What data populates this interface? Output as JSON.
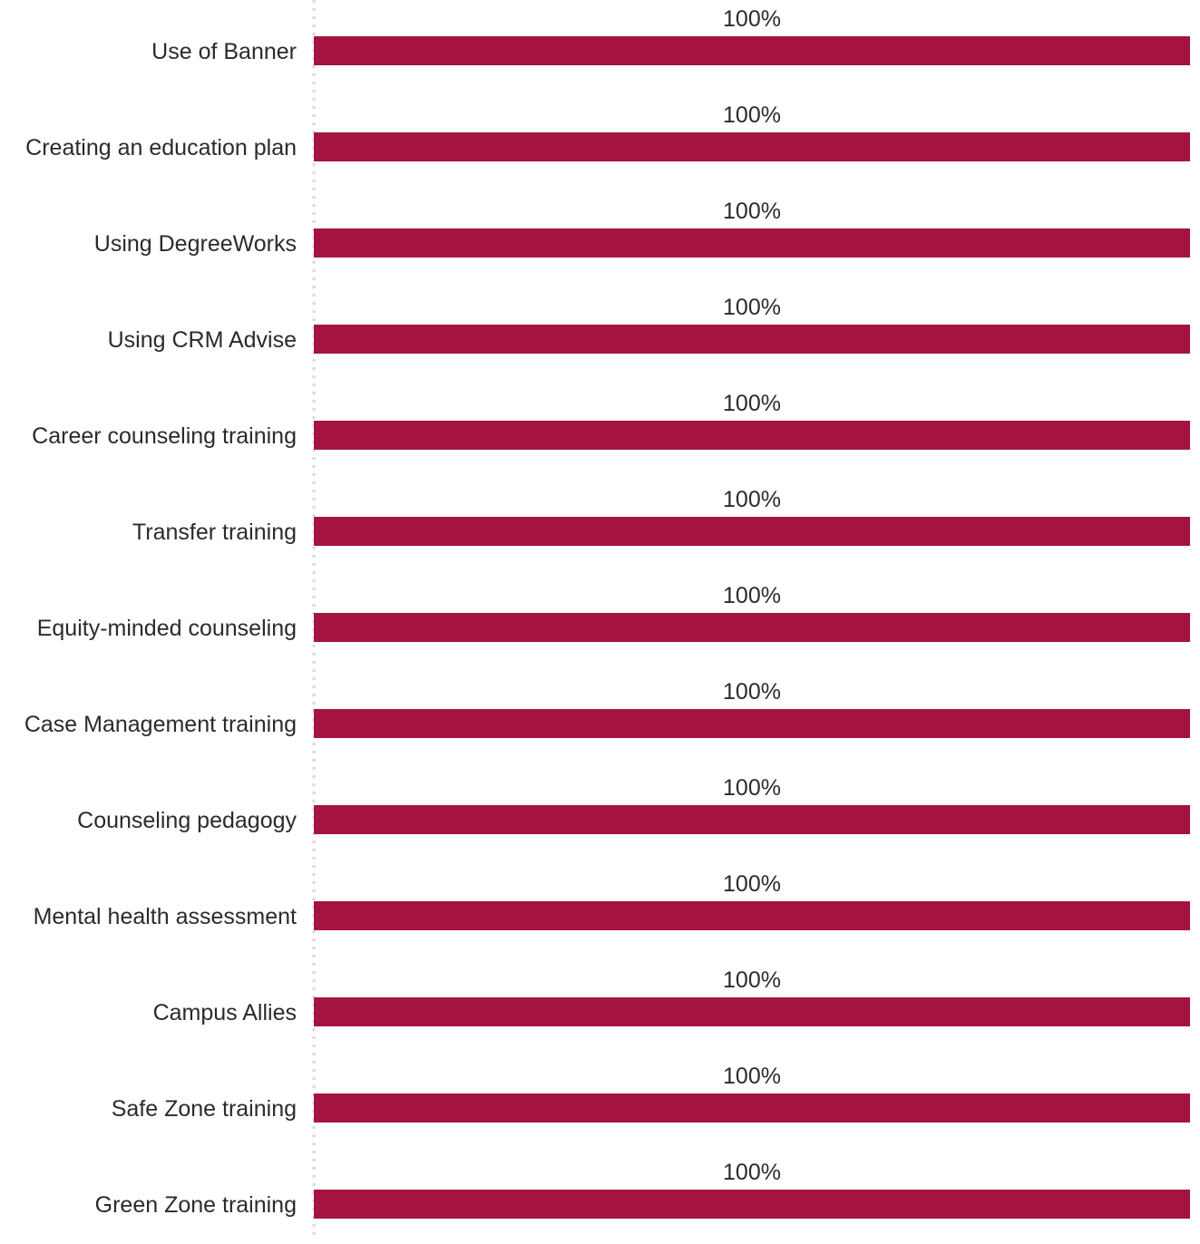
{
  "chart_data": {
    "type": "bar",
    "orientation": "horizontal",
    "categories": [
      "Use of Banner",
      "Creating an education plan",
      "Using DegreeWorks",
      "Using CRM Advise",
      "Career counseling training",
      "Transfer training",
      "Equity-minded counseling",
      "Case Management training",
      "Counseling pedagogy",
      "Mental health assessment",
      "Campus Allies",
      "Safe Zone training",
      "Green Zone training"
    ],
    "values": [
      100,
      100,
      100,
      100,
      100,
      100,
      100,
      100,
      100,
      100,
      100,
      100,
      100
    ],
    "value_labels": [
      "100%",
      "100%",
      "100%",
      "100%",
      "100%",
      "100%",
      "100%",
      "100%",
      "100%",
      "100%",
      "100%",
      "100%",
      "100%"
    ],
    "xlim": [
      0,
      100
    ],
    "bar_color": "#a51440",
    "axis_line": "dotted",
    "grid": false,
    "legend": "none"
  }
}
